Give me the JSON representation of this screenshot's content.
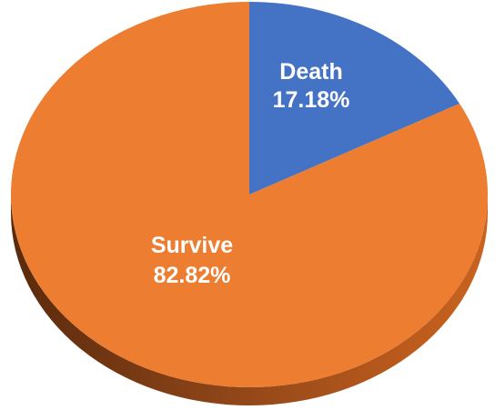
{
  "chart_data": {
    "type": "pie",
    "style": "3d",
    "slices": [
      {
        "label": "Death",
        "value": 17.18,
        "value_text": "17.18%",
        "color": "#4472C4"
      },
      {
        "label": "Survive",
        "value": 82.82,
        "value_text": "82.82%",
        "color": "#ED7D31"
      }
    ],
    "start_angle": "12 o'clock",
    "direction": "clockwise",
    "legend": "none"
  }
}
